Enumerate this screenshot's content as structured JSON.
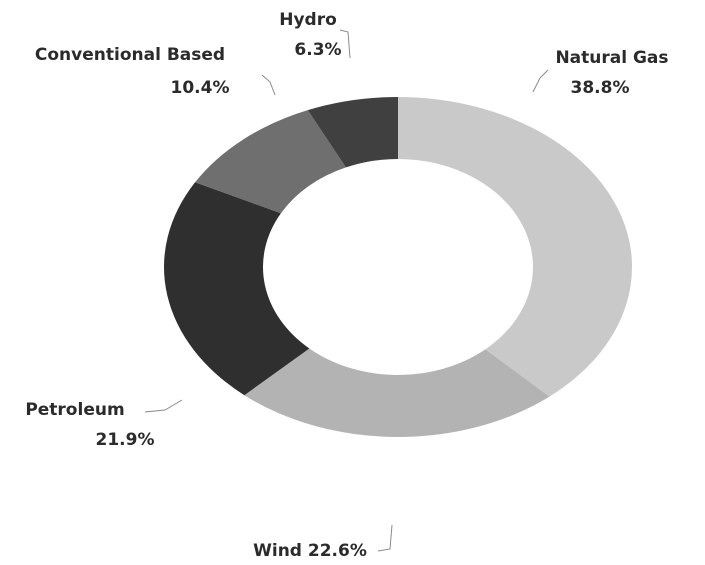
{
  "chart_data": {
    "type": "donut",
    "categories": [
      "Natural Gas",
      "Wind",
      "Petroleum",
      "Conventional Based",
      "Hydro"
    ],
    "values": [
      38.8,
      22.6,
      21.9,
      10.4,
      6.3
    ],
    "value_labels": [
      "38.8%",
      "22.6%",
      "21.9%",
      "10.4%",
      "6.3%"
    ],
    "colors": [
      "#c9c9c9",
      "#b3b3b3",
      "#2f2f2f",
      "#6f6f6f",
      "#404040"
    ]
  }
}
